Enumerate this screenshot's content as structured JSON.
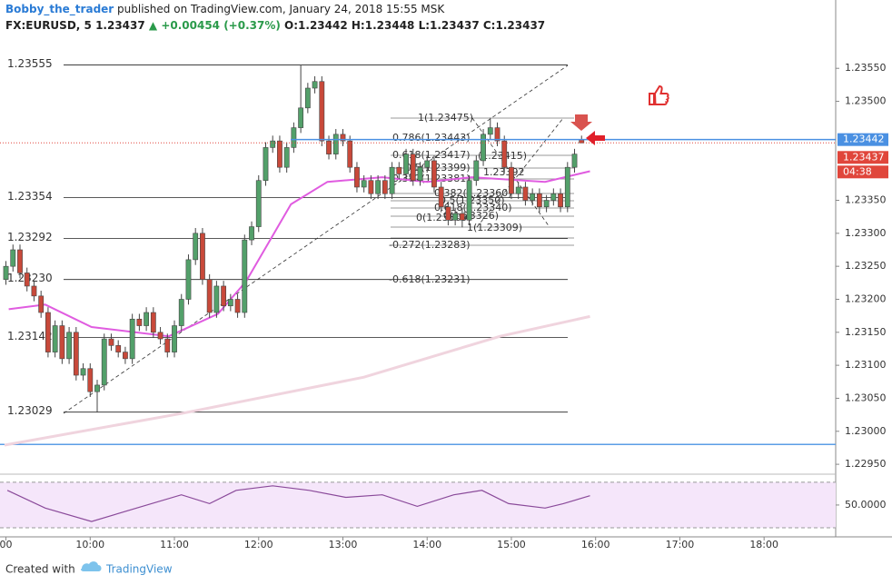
{
  "chart_data": {
    "type": "candlestick",
    "author": "Bobby_the_trader",
    "published": "published on TradingView.com, January 24, 2018 15:55 MSK",
    "symbol": "FX:EURUSD, 5",
    "last": "1.23437",
    "change": "▲ +0.00454 (+0.37%)",
    "ohlc_text": [
      "O:1.23442",
      "H:1.23448",
      "L:1.23437",
      "C:1.23437"
    ],
    "up_color": "#53a06a",
    "down_color": "#c8493a",
    "xlim": [
      539,
      1131
    ],
    "xticks": [
      {
        "value": 540,
        "label": "00"
      },
      {
        "value": 600,
        "label": "10:00"
      },
      {
        "value": 660,
        "label": "11:00"
      },
      {
        "value": 720,
        "label": "12:00"
      },
      {
        "value": 780,
        "label": "13:00"
      },
      {
        "value": 840,
        "label": "14:00"
      },
      {
        "value": 900,
        "label": "15:00"
      },
      {
        "value": 960,
        "label": "16:00"
      },
      {
        "value": 1020,
        "label": "17:00"
      },
      {
        "value": 1080,
        "label": "18:00"
      }
    ],
    "ylim": [
      1.22935,
      1.23626
    ],
    "yticks": [
      {
        "value": 1.2355,
        "label": "1.23550"
      },
      {
        "value": 1.235,
        "label": "1.23500"
      },
      {
        "value": 1.2335,
        "label": "1.23350"
      },
      {
        "value": 1.233,
        "label": "1.23300"
      },
      {
        "value": 1.2325,
        "label": "1.23250"
      },
      {
        "value": 1.232,
        "label": "1.23200"
      },
      {
        "value": 1.2315,
        "label": "1.23150"
      },
      {
        "value": 1.231,
        "label": "1.23100"
      },
      {
        "value": 1.2305,
        "label": "1.23050"
      },
      {
        "value": 1.23,
        "label": "1.23000"
      },
      {
        "value": 1.2295,
        "label": "1.22950"
      }
    ],
    "candles": {
      "x": [
        540,
        545,
        550,
        555,
        560,
        565,
        570,
        575,
        580,
        585,
        590,
        595,
        600,
        605,
        610,
        615,
        620,
        625,
        630,
        635,
        640,
        645,
        650,
        655,
        660,
        665,
        670,
        675,
        680,
        685,
        690,
        695,
        700,
        705,
        710,
        715,
        720,
        725,
        730,
        735,
        740,
        745,
        750,
        755,
        760,
        765,
        770,
        775,
        780,
        785,
        790,
        795,
        800,
        805,
        810,
        815,
        820,
        825,
        830,
        835,
        840,
        845,
        850,
        855,
        860,
        865,
        870,
        875,
        880,
        885,
        890,
        895,
        900,
        905,
        910,
        915,
        920,
        925,
        930,
        935,
        940,
        945,
        950
      ],
      "open": [
        1.2323,
        1.2325,
        1.23275,
        1.2324,
        1.2322,
        1.23205,
        1.2318,
        1.2312,
        1.2316,
        1.2311,
        1.2315,
        1.23085,
        1.23095,
        1.2306,
        1.2307,
        1.2314,
        1.2313,
        1.2312,
        1.2311,
        1.2317,
        1.2316,
        1.2318,
        1.2315,
        1.2314,
        1.2312,
        1.2316,
        1.232,
        1.2326,
        1.233,
        1.2323,
        1.2318,
        1.2322,
        1.2319,
        1.232,
        1.2318,
        1.2329,
        1.2331,
        1.2338,
        1.2343,
        1.2344,
        1.234,
        1.2343,
        1.2346,
        1.2349,
        1.2352,
        1.2353,
        1.2344,
        1.2342,
        1.2345,
        1.2344,
        1.234,
        1.2337,
        1.2338,
        1.2336,
        1.2338,
        1.2336,
        1.234,
        1.2339,
        1.2342,
        1.2338,
        1.234,
        1.2341,
        1.2337,
        1.2334,
        1.2332,
        1.2333,
        1.2332,
        1.2338,
        1.2341,
        1.2345,
        1.2346,
        1.2344,
        1.234,
        1.2336,
        1.2337,
        1.2335,
        1.2336,
        1.2334,
        1.2335,
        1.2336,
        1.2334,
        1.234,
        1.23442
      ],
      "high": [
        1.23258,
        1.23283,
        1.23283,
        1.23248,
        1.23228,
        1.23213,
        1.23188,
        1.23168,
        1.23168,
        1.23158,
        1.23158,
        1.23103,
        1.23103,
        1.23078,
        1.23148,
        1.23148,
        1.23138,
        1.23128,
        1.23178,
        1.23178,
        1.23188,
        1.23188,
        1.23158,
        1.23148,
        1.23168,
        1.23208,
        1.23268,
        1.23308,
        1.23308,
        1.23238,
        1.23228,
        1.23228,
        1.23208,
        1.23208,
        1.23298,
        1.23318,
        1.23388,
        1.23438,
        1.23448,
        1.23448,
        1.23438,
        1.23468,
        1.23555,
        1.23528,
        1.23538,
        1.23538,
        1.23448,
        1.23458,
        1.23458,
        1.23448,
        1.23408,
        1.23388,
        1.23388,
        1.23388,
        1.23388,
        1.23408,
        1.23408,
        1.23428,
        1.23428,
        1.23408,
        1.23418,
        1.23418,
        1.23378,
        1.23348,
        1.23338,
        1.23338,
        1.23388,
        1.23418,
        1.23458,
        1.23475,
        1.23468,
        1.23448,
        1.23408,
        1.23378,
        1.23378,
        1.23368,
        1.23368,
        1.23358,
        1.23368,
        1.23368,
        1.23408,
        1.23428,
        1.23448
      ],
      "low": [
        1.23222,
        1.23242,
        1.23232,
        1.23212,
        1.23197,
        1.23172,
        1.23112,
        1.23112,
        1.23102,
        1.23102,
        1.23077,
        1.23077,
        1.23052,
        1.23029,
        1.23062,
        1.23122,
        1.23112,
        1.23102,
        1.23102,
        1.23152,
        1.23152,
        1.23142,
        1.23132,
        1.23112,
        1.23112,
        1.23152,
        1.23192,
        1.23252,
        1.23222,
        1.23172,
        1.23172,
        1.23182,
        1.23182,
        1.23172,
        1.23172,
        1.23282,
        1.23302,
        1.23372,
        1.23422,
        1.23392,
        1.23392,
        1.23422,
        1.23452,
        1.23482,
        1.23512,
        1.23432,
        1.23412,
        1.23412,
        1.23432,
        1.23392,
        1.23362,
        1.23362,
        1.23352,
        1.23352,
        1.23352,
        1.23352,
        1.23382,
        1.23382,
        1.23372,
        1.23372,
        1.23392,
        1.23362,
        1.23332,
        1.23312,
        1.23312,
        1.23309,
        1.23312,
        1.23372,
        1.23402,
        1.23442,
        1.23432,
        1.23392,
        1.23352,
        1.23352,
        1.23342,
        1.23342,
        1.23332,
        1.23332,
        1.23342,
        1.23332,
        1.23332,
        1.23392,
        1.23437
      ],
      "close": [
        1.2325,
        1.23275,
        1.2324,
        1.2322,
        1.23205,
        1.2318,
        1.2312,
        1.2316,
        1.2311,
        1.2315,
        1.23085,
        1.23095,
        1.2306,
        1.2307,
        1.2314,
        1.2313,
        1.2312,
        1.2311,
        1.2317,
        1.2316,
        1.2318,
        1.2315,
        1.2314,
        1.2312,
        1.2316,
        1.232,
        1.2326,
        1.233,
        1.2323,
        1.2318,
        1.2322,
        1.2319,
        1.232,
        1.2318,
        1.2329,
        1.2331,
        1.2338,
        1.2343,
        1.2344,
        1.234,
        1.2343,
        1.2346,
        1.2349,
        1.2352,
        1.2353,
        1.2344,
        1.2342,
        1.2345,
        1.2344,
        1.234,
        1.2337,
        1.2338,
        1.2336,
        1.2338,
        1.2336,
        1.234,
        1.2339,
        1.2342,
        1.2338,
        1.234,
        1.2341,
        1.2337,
        1.2334,
        1.2332,
        1.2333,
        1.2332,
        1.2338,
        1.2341,
        1.2345,
        1.2346,
        1.2344,
        1.234,
        1.2336,
        1.2337,
        1.2335,
        1.2336,
        1.2334,
        1.2335,
        1.2336,
        1.2334,
        1.234,
        1.2342,
        1.23437
      ]
    },
    "series": [
      {
        "color": "#e05ce0",
        "x": [
          542,
          568,
          601,
          656,
          691,
          711,
          743,
          769,
          808,
          840,
          872,
          924,
          956
        ],
        "values": [
          1.23185,
          1.23192,
          1.23158,
          1.23144,
          1.23178,
          1.23227,
          1.23344,
          1.23378,
          1.23385,
          1.23378,
          1.23385,
          1.23378,
          1.23394
        ]
      },
      {
        "color": "#f0d4de",
        "x": [
          539,
          665,
          795,
          892,
          956
        ],
        "values": [
          1.22979,
          1.23027,
          1.23082,
          1.23144,
          1.23174
        ]
      }
    ],
    "levels": [
      1.23555,
      1.23354,
      1.23292,
      {
        "value": 1.2323,
        "label": "1.23230"
      },
      1.23142,
      1.23029
    ],
    "hlines": [
      1.2298
    ],
    "price_tags": [
      {
        "value": 1.23442,
        "label": "1.23442",
        "color": "#4a90e2"
      },
      {
        "value": 1.23437,
        "label": "1.23437",
        "color": "#e0463b"
      }
    ],
    "countdown": "04:38",
    "annotations": [
      "1(1.23475)",
      "0.786(1.23443)",
      "0.618(1.23417)",
      "0.5(1.23399)",
      "0.382(1.23381)",
      "0(1.23309)",
      "-0.272(1.23283)",
      "-0.618(1.23231)",
      "(1.23415)",
      "1.23392",
      "0.382(1.23360)",
      "0.5(1.23350)",
      "0.618(1.23340)",
      "0(1.23326)",
      "1(1.23309)"
    ],
    "rsi": {
      "color": "#8a4a9a",
      "x": [
        541,
        568,
        601,
        633,
        665,
        685,
        704,
        730,
        756,
        782,
        808,
        833,
        859,
        879,
        898,
        924,
        937,
        956
      ],
      "values": [
        62.9,
        47.3,
        35.5,
        47.3,
        59,
        51.2,
        62.9,
        66.9,
        62.9,
        56.7,
        59,
        48.8,
        59,
        62.9,
        51.2,
        47.3,
        51.2,
        58.2
      ],
      "ylim": [
        22,
        75.5
      ],
      "yticks": [
        {
          "value": 50,
          "label": "50.0000"
        }
      ],
      "bands": [
        70,
        30
      ]
    },
    "footer": "Created with",
    "brand": "TradingView"
  }
}
